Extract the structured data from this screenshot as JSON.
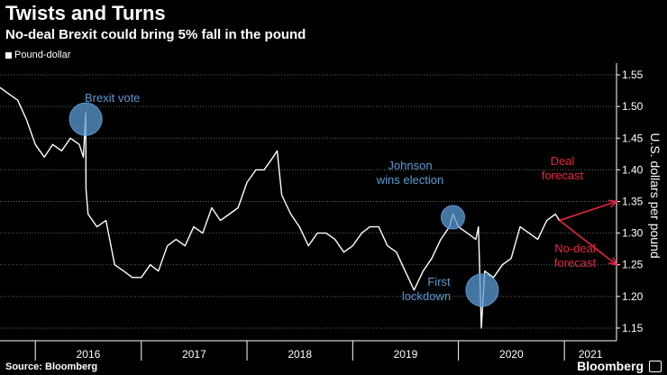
{
  "title": "Twists and Turns",
  "subtitle": "No-deal Brexit could bring 5% fall in the pound",
  "legend_label": "Pound-dollar",
  "source": "Source: Bloomberg",
  "logo": "Bloomberg",
  "colors": {
    "background": "#000000",
    "line": "#ffffff",
    "annotation_blue": "#5b9bd5",
    "forecast_red": "#e8263d",
    "grid": "#666666"
  },
  "chart_data": {
    "type": "line",
    "title": "Twists and Turns",
    "subtitle": "No-deal Brexit could bring 5% fall in the pound",
    "ylabel": "U.S. dollars per pound",
    "ylim": [
      1.13,
      1.56
    ],
    "yticks": [
      1.15,
      1.2,
      1.25,
      1.3,
      1.35,
      1.4,
      1.45,
      1.5,
      1.55
    ],
    "xlim": [
      "2015-09-01",
      "2021-06-30"
    ],
    "x_year_labels": [
      "2016",
      "2017",
      "2018",
      "2019",
      "2020",
      "2021"
    ],
    "grid": true,
    "series": [
      {
        "name": "Pound-dollar",
        "x": [
          "2015-09-01",
          "2015-10-01",
          "2015-11-01",
          "2015-12-01",
          "2016-01-01",
          "2016-02-01",
          "2016-03-01",
          "2016-04-01",
          "2016-05-01",
          "2016-06-01",
          "2016-06-15",
          "2016-06-23",
          "2016-06-24",
          "2016-07-01",
          "2016-08-01",
          "2016-09-01",
          "2016-10-01",
          "2016-11-01",
          "2016-12-01",
          "2017-01-01",
          "2017-02-01",
          "2017-03-01",
          "2017-04-01",
          "2017-05-01",
          "2017-06-01",
          "2017-07-01",
          "2017-08-01",
          "2017-09-01",
          "2017-10-01",
          "2017-11-01",
          "2017-12-01",
          "2018-01-01",
          "2018-02-01",
          "2018-03-01",
          "2018-04-01",
          "2018-04-15",
          "2018-05-01",
          "2018-06-01",
          "2018-07-01",
          "2018-08-01",
          "2018-09-01",
          "2018-10-01",
          "2018-11-01",
          "2018-12-01",
          "2019-01-01",
          "2019-02-01",
          "2019-03-01",
          "2019-04-01",
          "2019-05-01",
          "2019-06-01",
          "2019-07-01",
          "2019-08-01",
          "2019-09-01",
          "2019-10-01",
          "2019-11-01",
          "2019-12-01",
          "2019-12-13",
          "2020-01-01",
          "2020-02-01",
          "2020-03-01",
          "2020-03-10",
          "2020-03-20",
          "2020-04-01",
          "2020-05-01",
          "2020-06-01",
          "2020-07-01",
          "2020-08-01",
          "2020-09-01",
          "2020-10-01",
          "2020-11-01",
          "2020-12-01",
          "2020-12-15"
        ],
        "y": [
          1.53,
          1.52,
          1.51,
          1.48,
          1.44,
          1.42,
          1.44,
          1.43,
          1.45,
          1.44,
          1.42,
          1.49,
          1.37,
          1.33,
          1.31,
          1.32,
          1.25,
          1.24,
          1.23,
          1.23,
          1.25,
          1.24,
          1.28,
          1.29,
          1.28,
          1.31,
          1.3,
          1.34,
          1.32,
          1.33,
          1.34,
          1.38,
          1.4,
          1.4,
          1.42,
          1.43,
          1.36,
          1.33,
          1.31,
          1.28,
          1.3,
          1.3,
          1.29,
          1.27,
          1.28,
          1.3,
          1.31,
          1.31,
          1.28,
          1.27,
          1.24,
          1.21,
          1.24,
          1.26,
          1.29,
          1.31,
          1.33,
          1.31,
          1.3,
          1.29,
          1.31,
          1.15,
          1.24,
          1.23,
          1.25,
          1.26,
          1.31,
          1.3,
          1.29,
          1.32,
          1.33,
          1.32
        ]
      }
    ],
    "forecasts": [
      {
        "name": "Deal forecast",
        "from": {
          "x": "2020-12-15",
          "y": 1.32
        },
        "to": {
          "x": "2021-06-30",
          "y": 1.35
        }
      },
      {
        "name": "No-deal forecast",
        "from": {
          "x": "2020-12-15",
          "y": 1.32
        },
        "to": {
          "x": "2021-06-30",
          "y": 1.25
        }
      }
    ],
    "annotations": [
      {
        "label": "Brexit vote",
        "x": "2016-06-23",
        "y": 1.48,
        "color": "#5b9bd5"
      },
      {
        "label": "Johnson wins election",
        "x": "2019-12-13",
        "y": 1.325,
        "color": "#5b9bd5"
      },
      {
        "label": "First lockdown",
        "x": "2020-03-23",
        "y": 1.21,
        "color": "#5b9bd5"
      }
    ],
    "labels": {
      "brexit": "Brexit vote",
      "johnson_line1": "Johnson",
      "johnson_line2": "wins election",
      "lockdown_line1": "First",
      "lockdown_line2": "lockdown",
      "deal_line1": "Deal",
      "deal_line2": "forecast",
      "nodeal_line1": "No-deal",
      "nodeal_line2": "forecast"
    }
  }
}
